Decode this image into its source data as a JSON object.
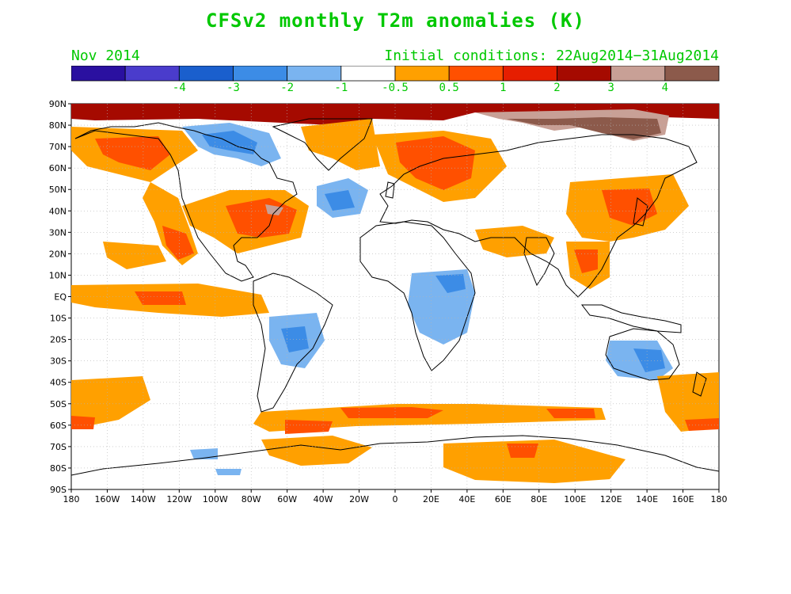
{
  "title": "CFSv2 monthly T2m anomalies (K)",
  "forecast_month": "Nov 2014",
  "initial_conditions": "Initial conditions: 22Aug2014−31Aug2014",
  "colorbar": {
    "colors": [
      "#2a10a0",
      "#4a3ccc",
      "#1a5fcd",
      "#3c8ce6",
      "#7ab4f0",
      "#ffffff",
      "#ffa000",
      "#ff5000",
      "#e61e00",
      "#a50a00",
      "#c8a096",
      "#8c5a4b"
    ],
    "labels": [
      "-4",
      "-3",
      "-2",
      "-1",
      "-0.5",
      "0.5",
      "1",
      "2",
      "3",
      "4"
    ]
  },
  "axes": {
    "lat_labels": [
      "90N",
      "80N",
      "70N",
      "60N",
      "50N",
      "40N",
      "30N",
      "20N",
      "10N",
      "EQ",
      "10S",
      "20S",
      "30S",
      "40S",
      "50S",
      "60S",
      "70S",
      "80S",
      "90S"
    ],
    "lon_labels": [
      "180",
      "160W",
      "140W",
      "120W",
      "100W",
      "80W",
      "60W",
      "40W",
      "20W",
      "0",
      "20E",
      "40E",
      "60E",
      "80E",
      "100E",
      "120E",
      "140E",
      "160E",
      "180"
    ]
  },
  "map_colors": {
    "ocean": "#ffffff",
    "coast": "#000000",
    "grid": "#b4b4b4"
  }
}
